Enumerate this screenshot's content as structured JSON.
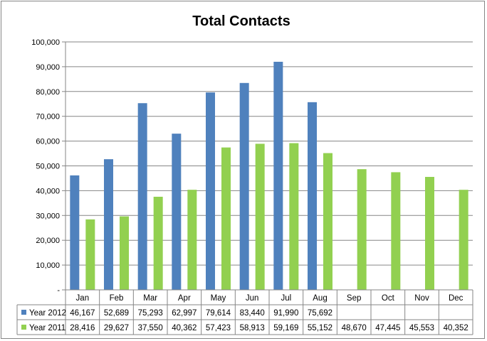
{
  "chart_data": {
    "type": "bar",
    "title": "Total Contacts",
    "xlabel": "",
    "ylabel": "",
    "categories": [
      "Jan",
      "Feb",
      "Mar",
      "Apr",
      "May",
      "Jun",
      "Jul",
      "Aug",
      "Sep",
      "Oct",
      "Nov",
      "Dec"
    ],
    "ylim": [
      0,
      100000
    ],
    "y_ticks": [
      "-",
      "10,000",
      "20,000",
      "30,000",
      "40,000",
      "50,000",
      "60,000",
      "70,000",
      "80,000",
      "90,000",
      "100,000"
    ],
    "grid": true,
    "legend": "data-table",
    "series": [
      {
        "name": "Year 2012",
        "color": "#4F81BD",
        "values": [
          46167,
          52689,
          75293,
          62997,
          79614,
          83440,
          91990,
          75692,
          null,
          null,
          null,
          null
        ],
        "labels": [
          "46,167",
          "52,689",
          "75,293",
          "62,997",
          "79,614",
          "83,440",
          "91,990",
          "75,692",
          "",
          "",
          "",
          ""
        ]
      },
      {
        "name": "Year 2011",
        "color": "#92D050",
        "values": [
          28416,
          29627,
          37550,
          40362,
          57423,
          58913,
          59169,
          55152,
          48670,
          47445,
          45553,
          40352
        ],
        "labels": [
          "28,416",
          "29,627",
          "37,550",
          "40,362",
          "57,423",
          "58,913",
          "59,169",
          "55,152",
          "48,670",
          "47,445",
          "45,553",
          "40,352"
        ]
      }
    ]
  }
}
